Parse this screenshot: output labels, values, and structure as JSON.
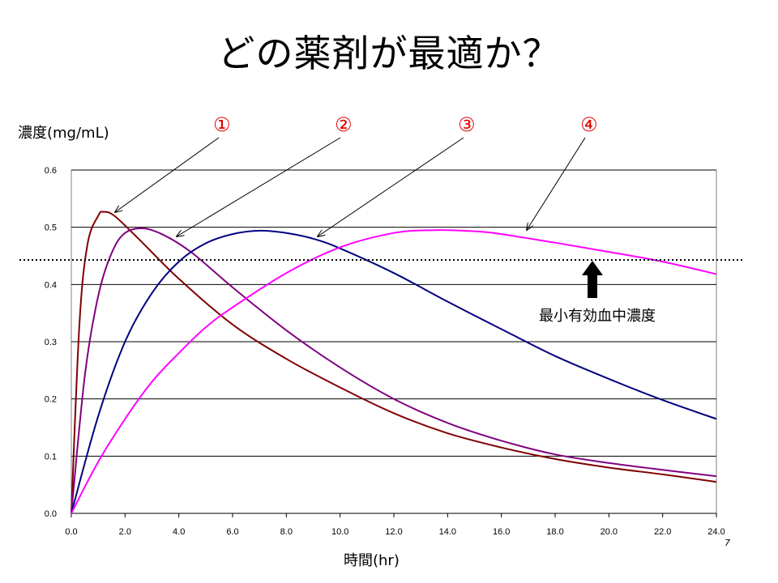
{
  "title": "どの薬剤が最適か？",
  "stray_mark": "7",
  "chart_data": {
    "type": "line",
    "title": "",
    "xlabel": "時間(hr)",
    "ylabel": "濃度(mg/mL)",
    "xlim": [
      0,
      24
    ],
    "ylim": [
      0,
      0.6
    ],
    "x_ticks": [
      "0.0",
      "2.0",
      "4.0",
      "6.0",
      "8.0",
      "10.0",
      "12.0",
      "14.0",
      "16.0",
      "18.0",
      "20.0",
      "22.0",
      "24.0"
    ],
    "y_ticks": [
      "0.0",
      "0.1",
      "0.2",
      "0.3",
      "0.4",
      "0.5",
      "0.6"
    ],
    "grid": "horizontal",
    "series": [
      {
        "name": "①",
        "color": "#800000",
        "x": [
          0,
          0.3,
          0.6,
          1.0,
          1.2,
          1.6,
          2.5,
          4,
          6,
          8,
          10,
          12,
          14,
          16,
          18,
          20,
          22,
          24
        ],
        "y": [
          0,
          0.33,
          0.47,
          0.52,
          0.527,
          0.52,
          0.48,
          0.41,
          0.33,
          0.27,
          0.22,
          0.175,
          0.14,
          0.115,
          0.095,
          0.08,
          0.068,
          0.055
        ]
      },
      {
        "name": "②",
        "color": "#800080",
        "x": [
          0,
          0.5,
          1.0,
          1.5,
          2.0,
          2.7,
          3.5,
          4.5,
          6,
          8,
          10,
          12,
          14,
          16,
          18,
          20,
          22,
          24
        ],
        "y": [
          0,
          0.24,
          0.38,
          0.455,
          0.49,
          0.498,
          0.485,
          0.455,
          0.395,
          0.32,
          0.255,
          0.2,
          0.158,
          0.127,
          0.103,
          0.088,
          0.076,
          0.065
        ]
      },
      {
        "name": "③",
        "color": "#000080",
        "x": [
          0,
          1,
          2,
          3,
          4,
          5,
          6,
          7,
          8,
          9,
          10,
          12,
          14,
          16,
          18,
          20,
          22,
          24
        ],
        "y": [
          0,
          0.17,
          0.3,
          0.385,
          0.44,
          0.472,
          0.488,
          0.494,
          0.49,
          0.48,
          0.463,
          0.42,
          0.37,
          0.322,
          0.275,
          0.235,
          0.198,
          0.165
        ]
      },
      {
        "name": "④",
        "color": "#ff00ff",
        "x": [
          0,
          1,
          2,
          3,
          4,
          5,
          6,
          8,
          10,
          12,
          13.5,
          15,
          16,
          18,
          20,
          22,
          24
        ],
        "y": [
          0,
          0.09,
          0.165,
          0.23,
          0.28,
          0.325,
          0.36,
          0.42,
          0.465,
          0.49,
          0.495,
          0.493,
          0.488,
          0.473,
          0.457,
          0.44,
          0.418
        ]
      }
    ],
    "threshold": {
      "label": "最小有効血中濃度",
      "y": 0.443
    }
  }
}
